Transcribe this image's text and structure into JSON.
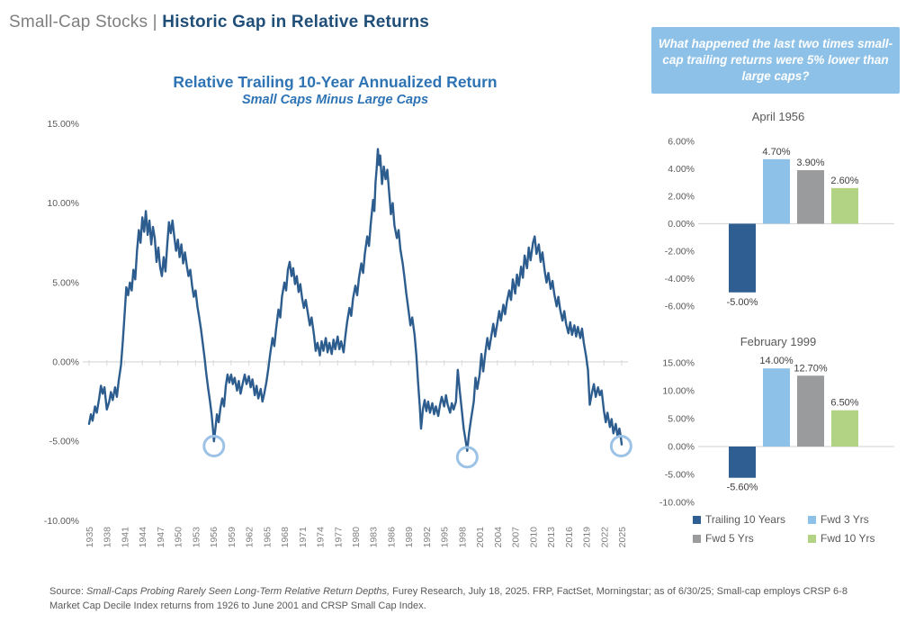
{
  "header": {
    "prefix": "Small-Cap Stocks | ",
    "title": "Historic Gap in Relative Returns"
  },
  "callout": {
    "text": "What happened the last two times small-cap trailing returns were 5% lower than large caps?",
    "bg": "#8ec1e7",
    "text_color": "#ffffff"
  },
  "colors": {
    "navy": "#1f4e79",
    "title_blue": "#2e74b5",
    "gray_text": "#7f7f7f",
    "axis_text": "#595959",
    "value_label": "#404040",
    "axis_line": "#d9d9d9",
    "line": "#2d5d8e",
    "circle": "#9cc3e6",
    "bar_dark_blue": "#2f5f92",
    "bar_light_blue": "#8ec1e7",
    "bar_gray": "#9a9b9d",
    "bar_green": "#b2d383"
  },
  "legend": {
    "items": [
      {
        "label": "Trailing 10 Years",
        "color": "#2f5f92"
      },
      {
        "label": "Fwd 3 Yrs",
        "color": "#8ec1e7"
      },
      {
        "label": "Fwd 5 Yrs",
        "color": "#9a9b9d"
      },
      {
        "label": "Fwd 10 Yrs",
        "color": "#b2d383"
      }
    ]
  },
  "source": {
    "label": "Source: ",
    "italic": "Small-Caps Probing Rarely Seen Long-Term Relative Return Depths,",
    "rest": " Furey Research, July 18, 2025. FRP, FactSet, Morningstar; as of 6/30/25; Small-cap employs CRSP 6-8 Market Cap Decile Index returns from 1926 to June 2001 and CRSP Small Cap Index."
  },
  "chart_data": [
    {
      "type": "line",
      "title": "Relative Trailing 10-Year Annualized Return",
      "subtitle": "Small Caps Minus Large Caps",
      "series_name": "Small caps minus large caps trailing 10-year annualized return",
      "ylim": [
        -10,
        15
      ],
      "yticks": [
        {
          "v": 15,
          "label": "15.00%"
        },
        {
          "v": 10,
          "label": "10.00%"
        },
        {
          "v": 5,
          "label": "5.00%"
        },
        {
          "v": 0,
          "label": "0.00%"
        },
        {
          "v": -5,
          "label": "-5.00%"
        },
        {
          "v": -10,
          "label": "-10.00%"
        }
      ],
      "xticks": [
        1935,
        1938,
        1941,
        1944,
        1947,
        1950,
        1953,
        1956,
        1959,
        1962,
        1965,
        1968,
        1971,
        1974,
        1977,
        1980,
        1983,
        1986,
        1989,
        1992,
        1995,
        1998,
        2001,
        2004,
        2007,
        2010,
        2013,
        2016,
        2019,
        2022,
        2025
      ],
      "line_color": "#2d5d8e",
      "annotation_color": "#9cc3e6",
      "annotations": [
        {
          "x": 1956.1,
          "y": -5.3
        },
        {
          "x": 1998.9,
          "y": -6.0
        },
        {
          "x": 2024.9,
          "y": -5.3
        }
      ],
      "points": [
        [
          1935,
          -3.9
        ],
        [
          1935.3,
          -3.3
        ],
        [
          1935.6,
          -3.7
        ],
        [
          1936,
          -2.8
        ],
        [
          1936.3,
          -3.2
        ],
        [
          1936.7,
          -2.3
        ],
        [
          1937,
          -1.5
        ],
        [
          1937.3,
          -2.0
        ],
        [
          1937.6,
          -1.6
        ],
        [
          1938,
          -3.0
        ],
        [
          1938.4,
          -2.5
        ],
        [
          1938.7,
          -1.9
        ],
        [
          1939,
          -2.4
        ],
        [
          1939.4,
          -1.6
        ],
        [
          1939.7,
          -2.2
        ],
        [
          1940,
          -1.2
        ],
        [
          1940.4,
          -0.2
        ],
        [
          1940.7,
          1.3
        ],
        [
          1941,
          3.0
        ],
        [
          1941.3,
          4.7
        ],
        [
          1941.6,
          4.2
        ],
        [
          1941.9,
          5.0
        ],
        [
          1942.2,
          4.5
        ],
        [
          1942.5,
          5.8
        ],
        [
          1942.8,
          5.2
        ],
        [
          1943.1,
          7.0
        ],
        [
          1943.4,
          8.3
        ],
        [
          1943.7,
          7.5
        ],
        [
          1944,
          9.1
        ],
        [
          1944.3,
          8.2
        ],
        [
          1944.6,
          9.5
        ],
        [
          1944.9,
          8.0
        ],
        [
          1945.2,
          8.9
        ],
        [
          1945.5,
          7.4
        ],
        [
          1945.8,
          8.5
        ],
        [
          1946.1,
          7.8
        ],
        [
          1946.4,
          6.3
        ],
        [
          1946.7,
          7.2
        ],
        [
          1947,
          6.0
        ],
        [
          1947.3,
          5.4
        ],
        [
          1947.6,
          6.6
        ],
        [
          1947.9,
          5.7
        ],
        [
          1948.2,
          7.3
        ],
        [
          1948.5,
          8.8
        ],
        [
          1948.8,
          8.1
        ],
        [
          1949.1,
          8.9
        ],
        [
          1949.4,
          7.9
        ],
        [
          1949.7,
          7.0
        ],
        [
          1950,
          7.7
        ],
        [
          1950.3,
          6.6
        ],
        [
          1950.6,
          7.4
        ],
        [
          1950.9,
          6.2
        ],
        [
          1951.2,
          6.9
        ],
        [
          1951.5,
          6.1
        ],
        [
          1951.8,
          5.4
        ],
        [
          1952.1,
          5.8
        ],
        [
          1952.4,
          4.8
        ],
        [
          1952.7,
          4.1
        ],
        [
          1953,
          4.5
        ],
        [
          1953.3,
          3.5
        ],
        [
          1953.6,
          2.8
        ],
        [
          1953.9,
          2.1
        ],
        [
          1954.2,
          1.2
        ],
        [
          1954.5,
          0.3
        ],
        [
          1954.8,
          -0.7
        ],
        [
          1955.1,
          -1.6
        ],
        [
          1955.4,
          -2.4
        ],
        [
          1955.7,
          -3.3
        ],
        [
          1955.9,
          -4.1
        ],
        [
          1956.1,
          -5.0
        ],
        [
          1956.4,
          -4.0
        ],
        [
          1956.6,
          -3.3
        ],
        [
          1956.9,
          -3.8
        ],
        [
          1957.2,
          -2.9
        ],
        [
          1957.5,
          -2.3
        ],
        [
          1957.8,
          -2.8
        ],
        [
          1958.1,
          -1.5
        ],
        [
          1958.4,
          -0.8
        ],
        [
          1958.7,
          -1.3
        ],
        [
          1959,
          -0.8
        ],
        [
          1959.3,
          -1.4
        ],
        [
          1959.6,
          -1.0
        ],
        [
          1960,
          -1.8
        ],
        [
          1960.3,
          -1.2
        ],
        [
          1960.6,
          -2.0
        ],
        [
          1961,
          -1.3
        ],
        [
          1961.3,
          -0.8
        ],
        [
          1961.6,
          -1.4
        ],
        [
          1962,
          -0.9
        ],
        [
          1962.3,
          -1.6
        ],
        [
          1962.6,
          -1.1
        ],
        [
          1963,
          -2.1
        ],
        [
          1963.3,
          -1.5
        ],
        [
          1963.6,
          -2.3
        ],
        [
          1964,
          -1.7
        ],
        [
          1964.3,
          -2.5
        ],
        [
          1964.6,
          -2.0
        ],
        [
          1965,
          -1.2
        ],
        [
          1965.3,
          -0.4
        ],
        [
          1965.6,
          0.5
        ],
        [
          1966,
          1.5
        ],
        [
          1966.3,
          1.0
        ],
        [
          1966.6,
          2.1
        ],
        [
          1967,
          3.3
        ],
        [
          1967.3,
          2.8
        ],
        [
          1967.6,
          4.1
        ],
        [
          1968,
          5.0
        ],
        [
          1968.3,
          4.5
        ],
        [
          1968.6,
          5.8
        ],
        [
          1968.9,
          6.3
        ],
        [
          1969.2,
          5.4
        ],
        [
          1969.5,
          5.9
        ],
        [
          1969.8,
          4.9
        ],
        [
          1970.1,
          5.4
        ],
        [
          1970.4,
          4.4
        ],
        [
          1970.7,
          4.9
        ],
        [
          1971,
          4.0
        ],
        [
          1971.3,
          3.4
        ],
        [
          1971.6,
          3.9
        ],
        [
          1972,
          3.0
        ],
        [
          1972.3,
          2.3
        ],
        [
          1972.6,
          2.8
        ],
        [
          1973,
          1.7
        ],
        [
          1973.3,
          0.7
        ],
        [
          1973.6,
          1.2
        ],
        [
          1974,
          0.4
        ],
        [
          1974.3,
          1.3
        ],
        [
          1974.6,
          0.7
        ],
        [
          1975,
          1.5
        ],
        [
          1975.3,
          0.6
        ],
        [
          1975.6,
          1.2
        ],
        [
          1976,
          0.5
        ],
        [
          1976.3,
          1.4
        ],
        [
          1976.6,
          0.8
        ],
        [
          1977,
          1.6
        ],
        [
          1977.3,
          0.8
        ],
        [
          1977.6,
          1.3
        ],
        [
          1978,
          0.6
        ],
        [
          1978.3,
          1.6
        ],
        [
          1978.6,
          2.5
        ],
        [
          1979,
          3.4
        ],
        [
          1979.3,
          2.9
        ],
        [
          1979.6,
          4.0
        ],
        [
          1980,
          4.8
        ],
        [
          1980.3,
          4.2
        ],
        [
          1980.6,
          5.3
        ],
        [
          1981,
          6.2
        ],
        [
          1981.3,
          5.6
        ],
        [
          1981.6,
          6.8
        ],
        [
          1982,
          7.9
        ],
        [
          1982.3,
          7.3
        ],
        [
          1982.6,
          8.7
        ],
        [
          1983,
          10.2
        ],
        [
          1983.2,
          9.5
        ],
        [
          1983.4,
          11.3
        ],
        [
          1983.6,
          12.2
        ],
        [
          1983.8,
          13.4
        ],
        [
          1984,
          12.4
        ],
        [
          1984.2,
          13.0
        ],
        [
          1984.5,
          11.2
        ],
        [
          1984.8,
          12.3
        ],
        [
          1985.1,
          11.5
        ],
        [
          1985.4,
          12.1
        ],
        [
          1985.7,
          10.7
        ],
        [
          1986,
          9.3
        ],
        [
          1986.3,
          10.0
        ],
        [
          1986.6,
          8.6
        ],
        [
          1987,
          7.8
        ],
        [
          1987.3,
          8.3
        ],
        [
          1987.6,
          7.1
        ],
        [
          1988,
          6.2
        ],
        [
          1988.3,
          5.3
        ],
        [
          1988.6,
          4.3
        ],
        [
          1989,
          3.2
        ],
        [
          1989.3,
          2.3
        ],
        [
          1989.6,
          2.8
        ],
        [
          1990,
          1.7
        ],
        [
          1990.3,
          0.4
        ],
        [
          1990.6,
          -1.3
        ],
        [
          1990.9,
          -2.9
        ],
        [
          1991.1,
          -4.2
        ],
        [
          1991.4,
          -3.0
        ],
        [
          1991.7,
          -2.4
        ],
        [
          1992,
          -3.1
        ],
        [
          1992.3,
          -2.5
        ],
        [
          1992.6,
          -3.2
        ],
        [
          1993,
          -2.6
        ],
        [
          1993.3,
          -3.3
        ],
        [
          1993.6,
          -2.8
        ],
        [
          1994,
          -3.4
        ],
        [
          1994.3,
          -2.7
        ],
        [
          1994.6,
          -2.2
        ],
        [
          1995,
          -2.8
        ],
        [
          1995.3,
          -2.1
        ],
        [
          1995.6,
          -2.7
        ],
        [
          1996,
          -3.2
        ],
        [
          1996.3,
          -2.6
        ],
        [
          1996.6,
          -3.0
        ],
        [
          1997,
          -2.5
        ],
        [
          1997.3,
          -0.5
        ],
        [
          1997.6,
          -1.7
        ],
        [
          1998,
          -3.1
        ],
        [
          1998.3,
          -4.2
        ],
        [
          1998.6,
          -4.9
        ],
        [
          1998.9,
          -5.6
        ],
        [
          1999.2,
          -4.5
        ],
        [
          1999.5,
          -3.7
        ],
        [
          2000,
          -2.5
        ],
        [
          2000.3,
          -1.0
        ],
        [
          2000.6,
          -1.7
        ],
        [
          2001,
          -0.8
        ],
        [
          2001.3,
          0.5
        ],
        [
          2001.6,
          -0.6
        ],
        [
          2002,
          0.7
        ],
        [
          2002.3,
          1.5
        ],
        [
          2002.6,
          0.8
        ],
        [
          2003,
          1.7
        ],
        [
          2003.3,
          2.4
        ],
        [
          2003.6,
          1.6
        ],
        [
          2004,
          2.5
        ],
        [
          2004.3,
          3.2
        ],
        [
          2004.6,
          2.6
        ],
        [
          2005,
          3.6
        ],
        [
          2005.3,
          3.0
        ],
        [
          2005.6,
          3.8
        ],
        [
          2006,
          4.5
        ],
        [
          2006.3,
          3.9
        ],
        [
          2006.6,
          5.2
        ],
        [
          2007,
          4.3
        ],
        [
          2007.3,
          5.5
        ],
        [
          2007.6,
          4.8
        ],
        [
          2008,
          6.0
        ],
        [
          2008.3,
          5.3
        ],
        [
          2008.6,
          6.7
        ],
        [
          2009,
          5.9
        ],
        [
          2009.3,
          7.2
        ],
        [
          2009.6,
          6.4
        ],
        [
          2010,
          7.5
        ],
        [
          2010.3,
          7.9
        ],
        [
          2010.6,
          6.8
        ],
        [
          2011,
          7.4
        ],
        [
          2011.3,
          6.3
        ],
        [
          2011.6,
          6.9
        ],
        [
          2012,
          5.7
        ],
        [
          2012.3,
          5.0
        ],
        [
          2012.6,
          5.6
        ],
        [
          2013,
          4.6
        ],
        [
          2013.3,
          5.1
        ],
        [
          2013.6,
          4.3
        ],
        [
          2014,
          3.5
        ],
        [
          2014.3,
          4.1
        ],
        [
          2014.6,
          3.3
        ],
        [
          2015,
          2.6
        ],
        [
          2015.3,
          3.2
        ],
        [
          2015.6,
          2.4
        ],
        [
          2016,
          1.8
        ],
        [
          2016.3,
          2.5
        ],
        [
          2016.6,
          1.7
        ],
        [
          2017,
          2.3
        ],
        [
          2017.3,
          1.6
        ],
        [
          2017.6,
          2.2
        ],
        [
          2018,
          1.5
        ],
        [
          2018.3,
          2.1
        ],
        [
          2018.6,
          1.2
        ],
        [
          2019,
          0.3
        ],
        [
          2019.3,
          -0.5
        ],
        [
          2019.6,
          -2.7
        ],
        [
          2020,
          -1.9
        ],
        [
          2020.3,
          -1.4
        ],
        [
          2020.6,
          -2.2
        ],
        [
          2021,
          -1.6
        ],
        [
          2021.3,
          -2.1
        ],
        [
          2021.6,
          -1.8
        ],
        [
          2022,
          -3.1
        ],
        [
          2022.3,
          -3.8
        ],
        [
          2022.6,
          -3.2
        ],
        [
          2023,
          -4.1
        ],
        [
          2023.3,
          -3.6
        ],
        [
          2023.6,
          -4.5
        ],
        [
          2024,
          -3.9
        ],
        [
          2024.3,
          -4.7
        ],
        [
          2024.6,
          -4.2
        ],
        [
          2024.8,
          -4.6
        ],
        [
          2025,
          -5.2
        ]
      ]
    },
    {
      "type": "bar",
      "title": "April 1956",
      "categories": [
        "Trailing 10 Years",
        "Fwd 3 Yrs",
        "Fwd 5 Yrs",
        "Fwd 10 Yrs"
      ],
      "values": [
        -5.0,
        4.7,
        3.9,
        2.6
      ],
      "value_labels": [
        "-5.00%",
        "4.70%",
        "3.90%",
        "2.60%"
      ],
      "bar_colors": [
        "#2f5f92",
        "#8ec1e7",
        "#9a9b9d",
        "#b2d383"
      ],
      "ylim": [
        -6,
        6
      ],
      "yticks": [
        {
          "v": 6,
          "label": "6.00%"
        },
        {
          "v": 4,
          "label": "4.00%"
        },
        {
          "v": 2,
          "label": "2.00%"
        },
        {
          "v": 0,
          "label": "0.00%"
        },
        {
          "v": -2,
          "label": "-2.00%"
        },
        {
          "v": -4,
          "label": "-4.00%"
        },
        {
          "v": -6,
          "label": "-6.00%"
        }
      ]
    },
    {
      "type": "bar",
      "title": "February 1999",
      "categories": [
        "Trailing 10 Years",
        "Fwd 3 Yrs",
        "Fwd 5 Yrs",
        "Fwd 10 Yrs"
      ],
      "values": [
        -5.6,
        14.0,
        12.7,
        6.5
      ],
      "value_labels": [
        "-5.60%",
        "14.00%",
        "12.70%",
        "6.50%"
      ],
      "bar_colors": [
        "#2f5f92",
        "#8ec1e7",
        "#9a9b9d",
        "#b2d383"
      ],
      "ylim": [
        -10,
        15
      ],
      "yticks": [
        {
          "v": 15,
          "label": "15.00%"
        },
        {
          "v": 10,
          "label": "10.00%"
        },
        {
          "v": 5,
          "label": "5.00%"
        },
        {
          "v": 0,
          "label": "0.00%"
        },
        {
          "v": -5,
          "label": "-5.00%"
        },
        {
          "v": -10,
          "label": "-10.00%"
        }
      ]
    }
  ]
}
